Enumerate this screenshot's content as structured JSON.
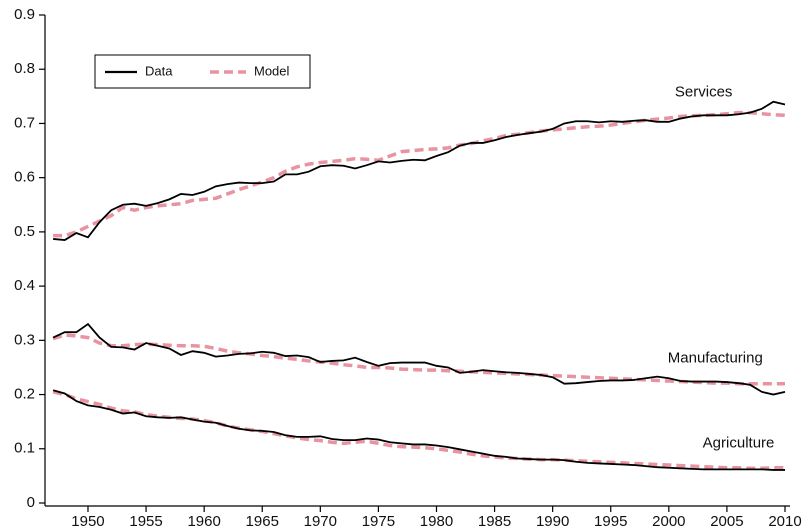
{
  "chart_data": {
    "type": "line",
    "x": [
      1947,
      1948,
      1949,
      1950,
      1951,
      1952,
      1953,
      1954,
      1955,
      1956,
      1957,
      1958,
      1959,
      1960,
      1961,
      1962,
      1963,
      1964,
      1965,
      1966,
      1967,
      1968,
      1969,
      1970,
      1971,
      1972,
      1973,
      1974,
      1975,
      1976,
      1977,
      1978,
      1979,
      1980,
      1981,
      1982,
      1983,
      1984,
      1985,
      1986,
      1987,
      1988,
      1989,
      1990,
      1991,
      1992,
      1993,
      1994,
      1995,
      1996,
      1997,
      1998,
      1999,
      2000,
      2001,
      2002,
      2003,
      2004,
      2005,
      2006,
      2007,
      2008,
      2009,
      2010
    ],
    "xlim": [
      1946.3,
      2010
    ],
    "ylim": [
      0,
      0.9
    ],
    "xticks": [
      1950,
      1955,
      1960,
      1965,
      1970,
      1975,
      1980,
      1985,
      1990,
      1995,
      2000,
      2005,
      2010
    ],
    "yticks": [
      0,
      0.1,
      0.2,
      0.3,
      0.4,
      0.5,
      0.6,
      0.7,
      0.8,
      0.9
    ],
    "legend": [
      {
        "name": "Data",
        "color": "#000000",
        "dash": false
      },
      {
        "name": "Model",
        "color": "#e8939f",
        "dash": true
      }
    ],
    "series": [
      {
        "name": "Services",
        "values": [
          0.487,
          0.485,
          0.498,
          0.49,
          0.518,
          0.54,
          0.55,
          0.552,
          0.548,
          0.553,
          0.56,
          0.57,
          0.568,
          0.574,
          0.584,
          0.588,
          0.591,
          0.59,
          0.59,
          0.593,
          0.606,
          0.606,
          0.611,
          0.621,
          0.623,
          0.622,
          0.617,
          0.623,
          0.63,
          0.628,
          0.631,
          0.633,
          0.632,
          0.64,
          0.647,
          0.659,
          0.664,
          0.664,
          0.669,
          0.675,
          0.679,
          0.682,
          0.685,
          0.69,
          0.7,
          0.704,
          0.704,
          0.702,
          0.704,
          0.703,
          0.705,
          0.706,
          0.703,
          0.703,
          0.709,
          0.713,
          0.715,
          0.715,
          0.715,
          0.717,
          0.72,
          0.727,
          0.74,
          0.735
        ],
        "model": [
          0.493,
          0.493,
          0.5,
          0.51,
          0.52,
          0.53,
          0.545,
          0.54,
          0.545,
          0.548,
          0.55,
          0.552,
          0.558,
          0.56,
          0.562,
          0.57,
          0.578,
          0.585,
          0.592,
          0.6,
          0.612,
          0.62,
          0.625,
          0.628,
          0.63,
          0.632,
          0.635,
          0.634,
          0.632,
          0.64,
          0.648,
          0.65,
          0.652,
          0.653,
          0.655,
          0.66,
          0.663,
          0.668,
          0.672,
          0.678,
          0.68,
          0.683,
          0.686,
          0.688,
          0.69,
          0.692,
          0.694,
          0.695,
          0.697,
          0.7,
          0.703,
          0.706,
          0.708,
          0.71,
          0.713,
          0.714,
          0.715,
          0.716,
          0.718,
          0.72,
          0.72,
          0.718,
          0.716,
          0.715
        ]
      },
      {
        "name": "Manufacturing",
        "values": [
          0.305,
          0.315,
          0.315,
          0.33,
          0.305,
          0.288,
          0.287,
          0.283,
          0.295,
          0.29,
          0.285,
          0.273,
          0.28,
          0.277,
          0.27,
          0.272,
          0.275,
          0.276,
          0.279,
          0.277,
          0.271,
          0.272,
          0.269,
          0.26,
          0.262,
          0.263,
          0.268,
          0.26,
          0.253,
          0.258,
          0.259,
          0.259,
          0.259,
          0.253,
          0.25,
          0.24,
          0.242,
          0.245,
          0.243,
          0.241,
          0.24,
          0.238,
          0.236,
          0.232,
          0.22,
          0.221,
          0.223,
          0.225,
          0.226,
          0.226,
          0.227,
          0.23,
          0.233,
          0.23,
          0.225,
          0.224,
          0.224,
          0.224,
          0.223,
          0.221,
          0.218,
          0.205,
          0.2,
          0.205
        ],
        "model": [
          0.303,
          0.31,
          0.308,
          0.305,
          0.295,
          0.29,
          0.29,
          0.292,
          0.293,
          0.292,
          0.291,
          0.29,
          0.29,
          0.289,
          0.285,
          0.28,
          0.277,
          0.275,
          0.272,
          0.27,
          0.267,
          0.265,
          0.262,
          0.26,
          0.258,
          0.255,
          0.253,
          0.25,
          0.25,
          0.249,
          0.247,
          0.246,
          0.245,
          0.245,
          0.244,
          0.243,
          0.242,
          0.241,
          0.24,
          0.239,
          0.238,
          0.237,
          0.236,
          0.235,
          0.234,
          0.233,
          0.232,
          0.231,
          0.23,
          0.229,
          0.228,
          0.227,
          0.226,
          0.225,
          0.224,
          0.223,
          0.222,
          0.221,
          0.221,
          0.22,
          0.22,
          0.22,
          0.22,
          0.22
        ]
      },
      {
        "name": "Agriculture",
        "values": [
          0.208,
          0.202,
          0.188,
          0.18,
          0.177,
          0.172,
          0.165,
          0.167,
          0.16,
          0.158,
          0.157,
          0.158,
          0.154,
          0.15,
          0.148,
          0.142,
          0.137,
          0.134,
          0.133,
          0.131,
          0.125,
          0.122,
          0.122,
          0.123,
          0.118,
          0.116,
          0.116,
          0.119,
          0.117,
          0.112,
          0.11,
          0.108,
          0.108,
          0.106,
          0.103,
          0.099,
          0.095,
          0.091,
          0.087,
          0.085,
          0.082,
          0.081,
          0.08,
          0.08,
          0.079,
          0.076,
          0.074,
          0.073,
          0.072,
          0.071,
          0.07,
          0.068,
          0.066,
          0.065,
          0.064,
          0.063,
          0.062,
          0.062,
          0.062,
          0.062,
          0.062,
          0.062,
          0.061,
          0.061
        ],
        "model": [
          0.205,
          0.2,
          0.192,
          0.187,
          0.182,
          0.175,
          0.17,
          0.168,
          0.163,
          0.16,
          0.158,
          0.156,
          0.155,
          0.152,
          0.148,
          0.142,
          0.138,
          0.135,
          0.132,
          0.128,
          0.124,
          0.12,
          0.117,
          0.115,
          0.112,
          0.11,
          0.112,
          0.114,
          0.11,
          0.106,
          0.104,
          0.103,
          0.102,
          0.1,
          0.097,
          0.094,
          0.09,
          0.087,
          0.085,
          0.083,
          0.082,
          0.081,
          0.08,
          0.08,
          0.079,
          0.078,
          0.077,
          0.076,
          0.075,
          0.074,
          0.073,
          0.072,
          0.071,
          0.07,
          0.069,
          0.068,
          0.067,
          0.066,
          0.065,
          0.065,
          0.064,
          0.064,
          0.065,
          0.065
        ]
      }
    ]
  }
}
